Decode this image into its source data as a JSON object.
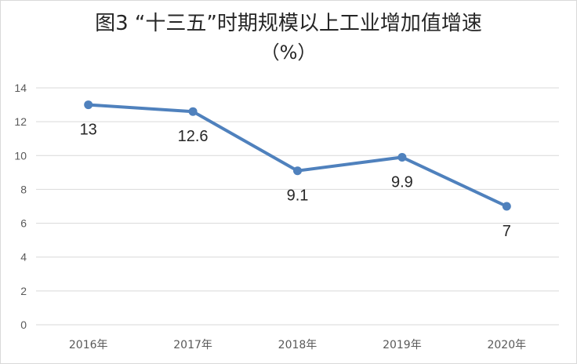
{
  "chart_data": {
    "type": "line",
    "title": "图3 “十三五”时期规模以上工业增加值增速",
    "subtitle": "（%）",
    "xlabel": "",
    "ylabel": "",
    "categories": [
      "2016年",
      "2017年",
      "2018年",
      "2019年",
      "2020年"
    ],
    "series": [
      {
        "values": [
          13,
          12.6,
          9.1,
          9.9,
          7
        ],
        "data_labels": [
          "13",
          "12.6",
          "9.1",
          "9.9",
          "7"
        ],
        "color": "#4f81bd"
      }
    ],
    "ylim": [
      0,
      14
    ],
    "yticks": [
      "0",
      "2",
      "4",
      "6",
      "8",
      "10",
      "12",
      "14"
    ],
    "grid": true,
    "legend": "none"
  }
}
